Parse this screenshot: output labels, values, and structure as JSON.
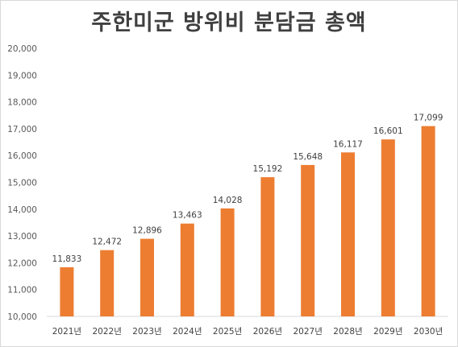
{
  "chart_data": {
    "type": "bar",
    "title": "주한미군 방위비 분담금 총액",
    "categories": [
      "2021년",
      "2022년",
      "2023년",
      "2024년",
      "2025년",
      "2026년",
      "2027년",
      "2028년",
      "2029년",
      "2030년"
    ],
    "values": [
      11833,
      12472,
      12896,
      13463,
      14028,
      15192,
      15648,
      16117,
      16601,
      17099
    ],
    "data_labels": [
      "11,833",
      "12,472",
      "12,896",
      "13,463",
      "14,028",
      "15,192",
      "15,648",
      "16,117",
      "16,601",
      "17,099"
    ],
    "yticks": [
      "10,000",
      "11,000",
      "12,000",
      "13,000",
      "14,000",
      "15,000",
      "16,000",
      "17,000",
      "18,000",
      "19,000",
      "20,000"
    ],
    "ylim": [
      10000,
      20000
    ],
    "xlabel": "",
    "ylabel": "",
    "grid": false,
    "bar_color": "#ED7D31"
  }
}
